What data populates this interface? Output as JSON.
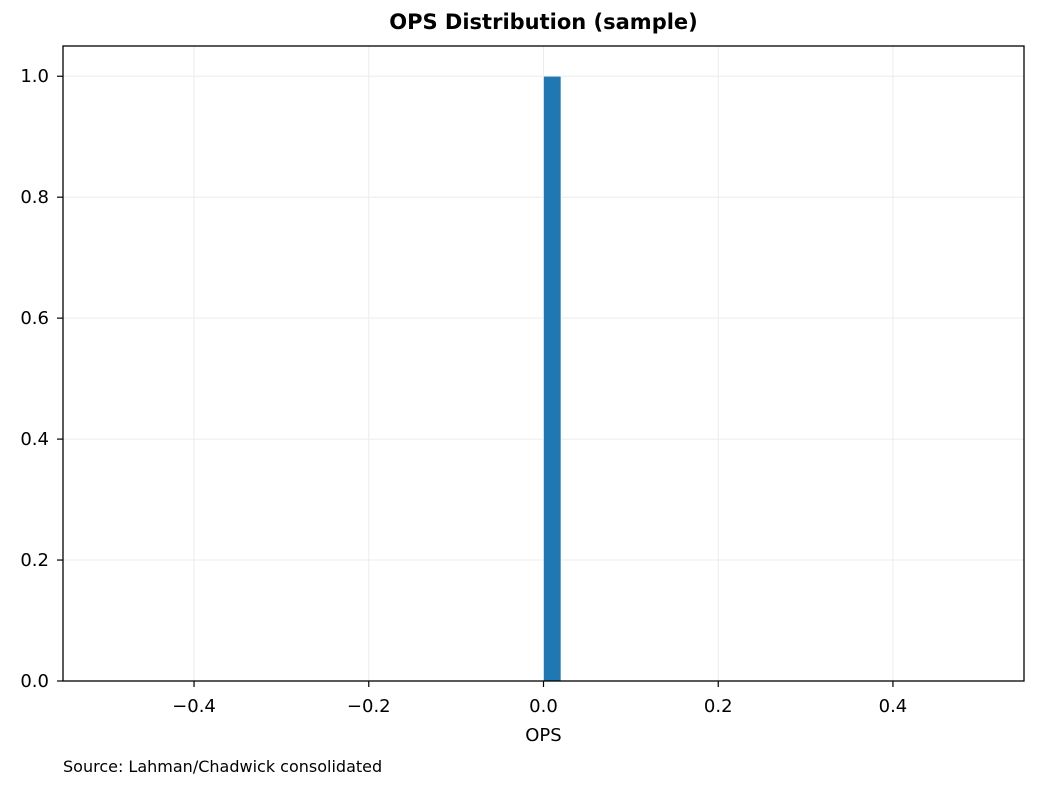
{
  "chart_data": {
    "type": "bar",
    "title": "OPS Distribution (sample)",
    "xlabel": "OPS",
    "ylabel": "",
    "xlim": [
      -0.55,
      0.55
    ],
    "ylim": [
      0,
      1.05
    ],
    "x_ticks": [
      -0.4,
      -0.2,
      0.0,
      0.2,
      0.4
    ],
    "x_tick_labels": [
      "−0.4",
      "−0.2",
      "0.0",
      "0.2",
      "0.4"
    ],
    "y_ticks": [
      0.0,
      0.2,
      0.4,
      0.6,
      0.8,
      1.0
    ],
    "y_tick_labels": [
      "0.0",
      "0.2",
      "0.4",
      "0.6",
      "0.8",
      "1.0"
    ],
    "bins": [
      {
        "x_start": 0.0,
        "x_end": 0.02,
        "value": 1.0
      }
    ],
    "bar_color": "#1f77b4",
    "grid": true,
    "legend": "none"
  },
  "footer": {
    "source": "Source: Lahman/Chadwick consolidated"
  }
}
